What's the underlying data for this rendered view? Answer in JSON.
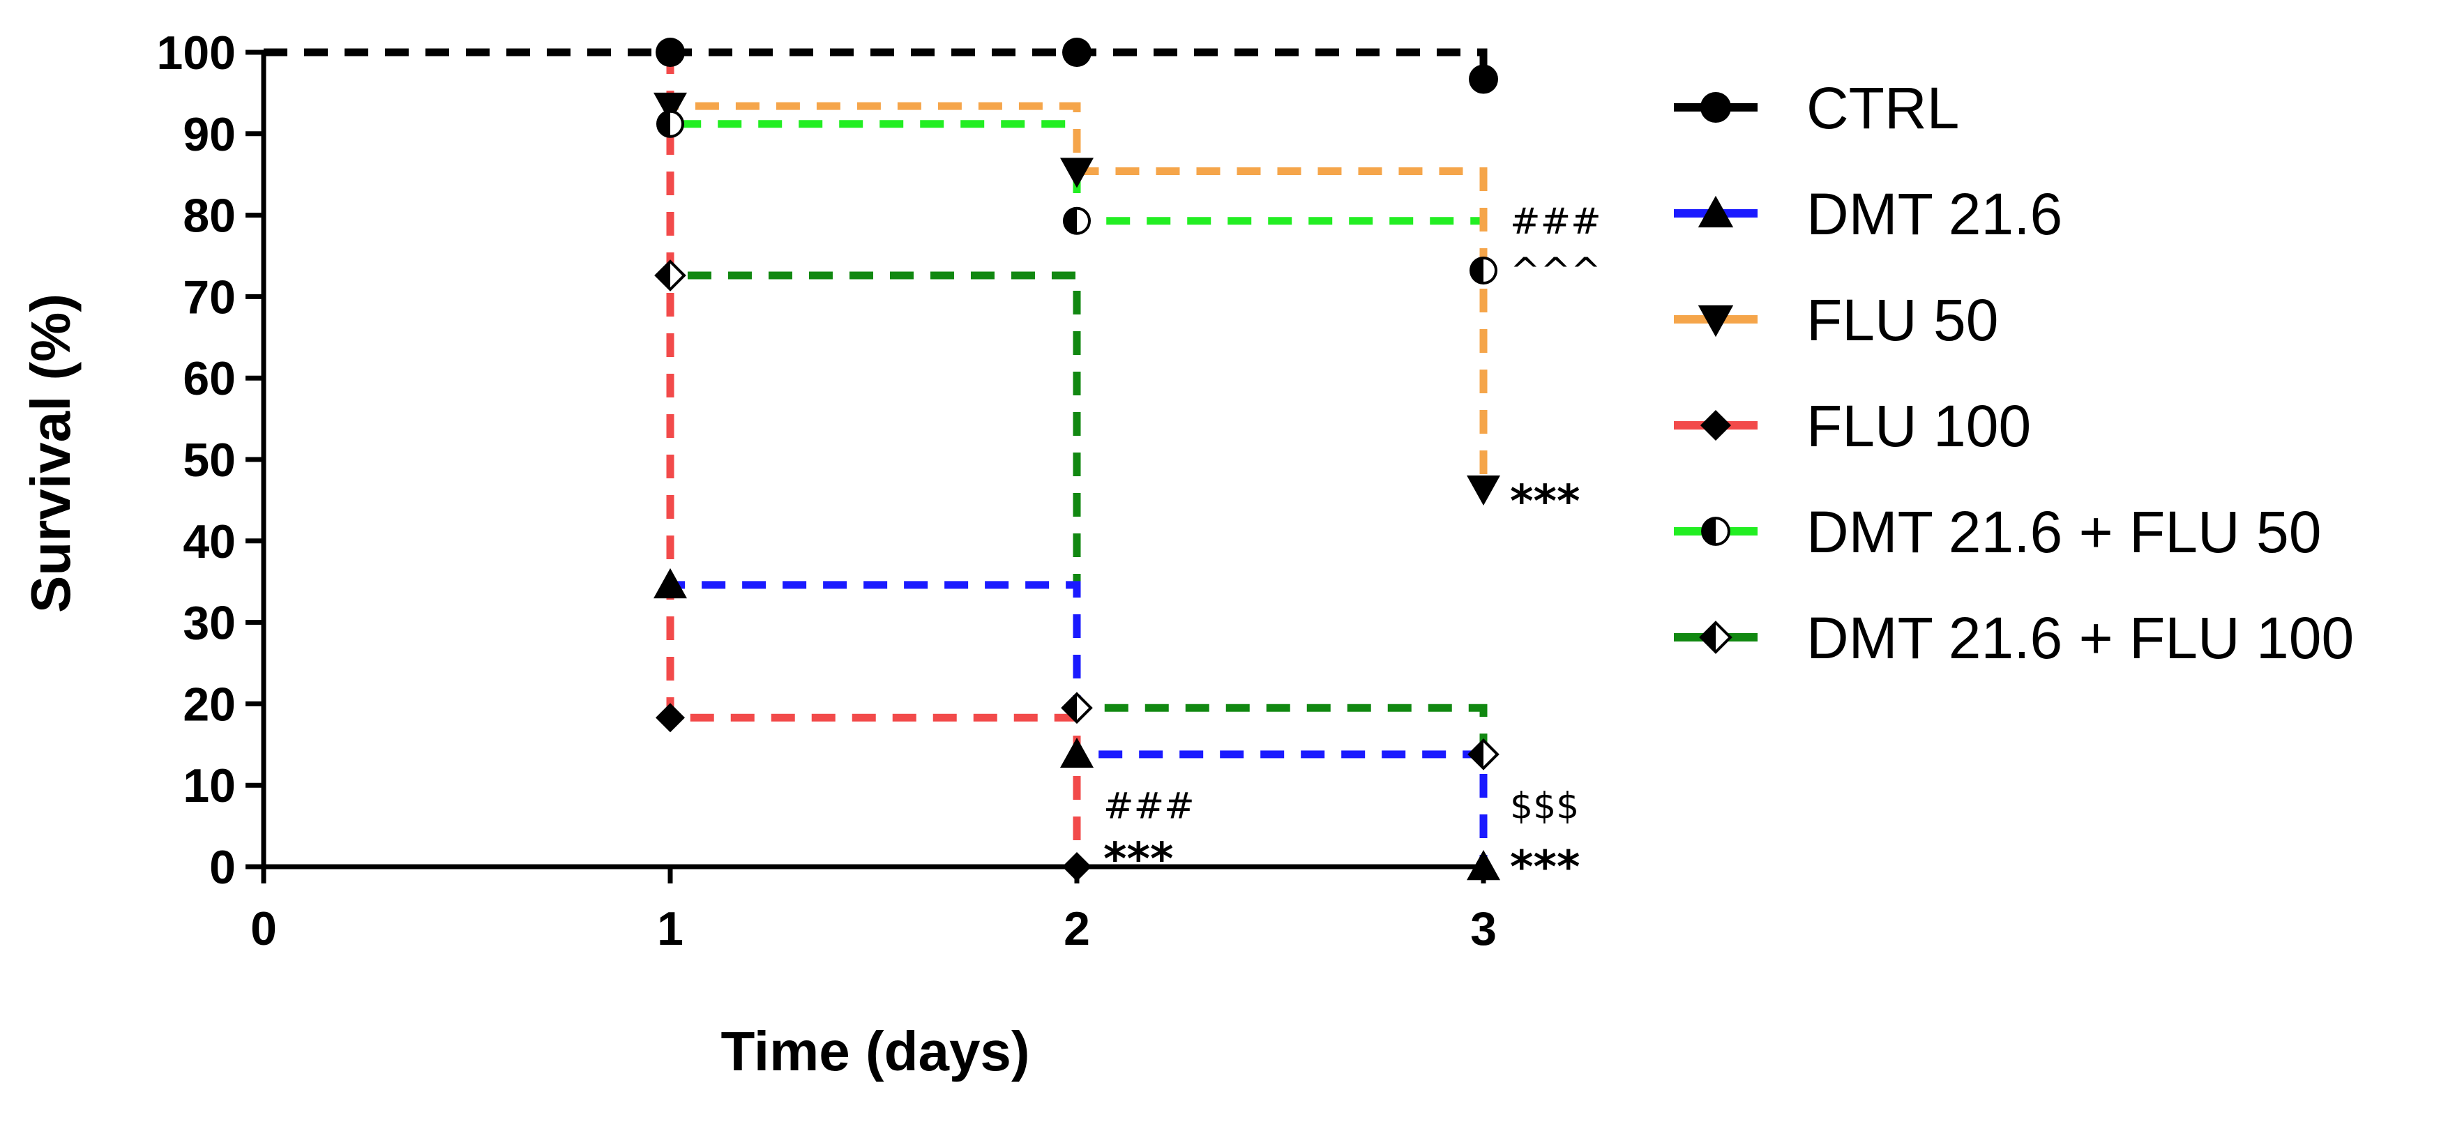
{
  "chart_data": {
    "type": "line",
    "step": true,
    "xlabel": "Time (days)",
    "ylabel": "Survival (%)",
    "xlim": [
      0,
      3
    ],
    "ylim": [
      0,
      100
    ],
    "xticks": [
      0,
      1,
      2,
      3
    ],
    "yticks": [
      0,
      10,
      20,
      30,
      40,
      50,
      60,
      70,
      80,
      90,
      100
    ],
    "grid": false,
    "legend_position": "right",
    "series": [
      {
        "name": "CTRL",
        "color": "#000000",
        "marker": "circle",
        "x": [
          0,
          1,
          2,
          3
        ],
        "y": [
          100,
          100,
          100,
          96.7
        ]
      },
      {
        "name": "DMT 21.6",
        "color": "#1a1aff",
        "marker": "triangle-up",
        "x": [
          0,
          1,
          2,
          3
        ],
        "y": [
          100,
          34.6,
          13.8,
          0
        ]
      },
      {
        "name": "FLU 50",
        "color": "#f5a54a",
        "marker": "triangle-down",
        "x": [
          0,
          1,
          2,
          3
        ],
        "y": [
          100,
          93.4,
          85.4,
          46.4
        ]
      },
      {
        "name": "FLU 100",
        "color": "#f24a4a",
        "marker": "diamond",
        "x": [
          0,
          1,
          2
        ],
        "y": [
          100,
          18.3,
          0
        ]
      },
      {
        "name": "DMT 21.6 + FLU 50",
        "color": "#22ee22",
        "marker": "circle-half",
        "x": [
          0,
          1,
          2,
          3
        ],
        "y": [
          100,
          91.2,
          79.3,
          73.2
        ]
      },
      {
        "name": "DMT 21.6 + FLU 100",
        "color": "#118811",
        "marker": "diamond-half",
        "x": [
          0,
          1,
          2,
          3
        ],
        "y": [
          100,
          72.6,
          19.5,
          13.8
        ]
      }
    ],
    "annotations": [
      {
        "text": "###",
        "x": 3,
        "y": 79.3,
        "series": "DMT 21.6 + FLU 50"
      },
      {
        "text": "^^^",
        "x": 3,
        "y": 73.2,
        "series": "DMT 21.6 + FLU 50"
      },
      {
        "text": "***",
        "x": 3,
        "y": 46.4,
        "series": "FLU 50"
      },
      {
        "text": "###",
        "x": 2,
        "y": 7.5,
        "series": "FLU 100"
      },
      {
        "text": "***",
        "x": 2,
        "y": 2.5,
        "series": "FLU 100"
      },
      {
        "text": "$$$",
        "x": 3,
        "y": 7.5,
        "series": "DMT 21.6"
      },
      {
        "text": "***",
        "x": 3,
        "y": 1.5,
        "series": "DMT 21.6"
      }
    ]
  }
}
